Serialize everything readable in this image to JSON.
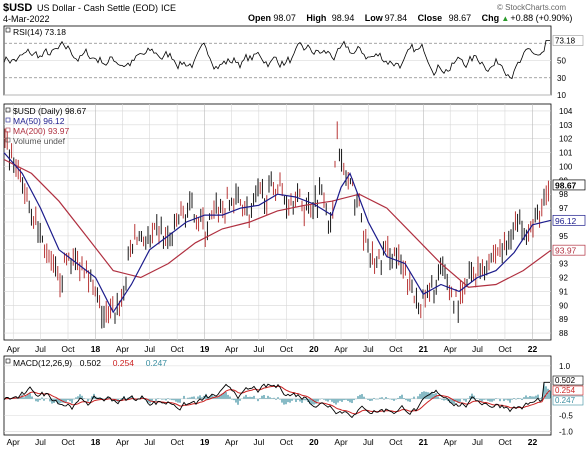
{
  "header": {
    "symbol": "$USD",
    "name": "US Dollar - Cash Settle (EOD)",
    "exchange": "ICE",
    "date": "4-Mar-2022",
    "watermark": "© StockCharts.com",
    "ohlc": [
      {
        "label": "Open",
        "value": "98.07"
      },
      {
        "label": "High",
        "value": "98.94"
      },
      {
        "label": "Low",
        "value": "97.84"
      },
      {
        "label": "Close",
        "value": "98.67"
      },
      {
        "label": "Chg",
        "value": "+0.88 (+0.90%)"
      }
    ],
    "chg_arrow": "▲"
  },
  "colors": {
    "price": "#000000",
    "ma50": "#1c1c8c",
    "ma200": "#b03040",
    "macd": "#000000",
    "signal": "#cc2222",
    "histogram": "#3a8ea0",
    "grid": "#d8d8d8",
    "rsi_line": "#000000",
    "rsi_fill_high": "#cc3333",
    "rsi_fill_low": "#3355cc"
  },
  "chart_data": [
    {
      "type": "line",
      "panel": "rsi",
      "title": "RSI(14) 73.18",
      "legend": "RSI(14) 73.18",
      "current_value": 73.18,
      "current_label": "73.18",
      "ylim": [
        10,
        90
      ],
      "yticks": [
        70,
        50,
        30,
        10
      ],
      "reference_lines": [
        70,
        30
      ],
      "grid": true
    },
    {
      "type": "line",
      "panel": "price",
      "legend": [
        {
          "name": "$USD (Daily) 98.67",
          "color": "#000000"
        },
        {
          "name": "MA(50) 96.12",
          "color": "#1c1c8c"
        },
        {
          "name": "MA(200) 93.97",
          "color": "#b03040"
        },
        {
          "name": "Volume undef",
          "color": "#555555"
        }
      ],
      "ylim": [
        87.5,
        104.5
      ],
      "yticks": [
        88,
        89,
        90,
        91,
        92,
        93,
        94,
        95,
        96,
        97,
        98,
        99,
        100,
        101,
        102,
        103,
        104
      ],
      "right_labels": [
        {
          "value": 98.67,
          "label": "98.67"
        },
        {
          "value": 96.12,
          "label": "96.12"
        },
        {
          "value": 93.97,
          "label": "93.97"
        }
      ],
      "series": [
        {
          "name": "$USD (Daily)",
          "x": [
            "2017-03-01",
            "2017-04-01",
            "2017-05-01",
            "2017-06-01",
            "2017-07-01",
            "2017-08-01",
            "2017-09-01",
            "2017-10-01",
            "2017-11-01",
            "2017-12-01",
            "2018-01-01",
            "2018-02-01",
            "2018-03-01",
            "2018-04-01",
            "2018-05-01",
            "2018-06-01",
            "2018-07-01",
            "2018-08-01",
            "2018-09-01",
            "2018-10-01",
            "2018-11-01",
            "2018-12-01",
            "2019-01-01",
            "2019-02-01",
            "2019-03-01",
            "2019-04-01",
            "2019-05-01",
            "2019-06-01",
            "2019-07-01",
            "2019-08-01",
            "2019-09-01",
            "2019-10-01",
            "2019-11-01",
            "2019-12-01",
            "2020-01-01",
            "2020-02-01",
            "2020-03-01",
            "2020-03-15",
            "2020-03-20",
            "2020-04-01",
            "2020-05-01",
            "2020-06-01",
            "2020-07-01",
            "2020-08-01",
            "2020-09-01",
            "2020-10-01",
            "2020-11-01",
            "2020-12-01",
            "2021-01-01",
            "2021-02-01",
            "2021-03-01",
            "2021-04-01",
            "2021-05-01",
            "2021-06-01",
            "2021-07-01",
            "2021-08-01",
            "2021-09-01",
            "2021-10-01",
            "2021-11-01",
            "2021-12-01",
            "2022-01-01",
            "2022-02-01",
            "2022-03-04"
          ],
          "values": [
            101.5,
            100.0,
            98.8,
            97.0,
            95.0,
            93.0,
            91.8,
            93.5,
            93.0,
            93.0,
            90.5,
            89.0,
            89.5,
            90.5,
            94.5,
            95.0,
            94.5,
            95.5,
            94.5,
            96.0,
            96.8,
            96.8,
            95.5,
            96.5,
            97.0,
            97.5,
            97.5,
            96.5,
            98.0,
            98.0,
            98.7,
            97.5,
            98.0,
            97.0,
            97.5,
            98.5,
            95.0,
            102.5,
            103.5,
            100.0,
            98.5,
            97.0,
            93.5,
            93.0,
            94.0,
            93.5,
            92.0,
            90.5,
            90.2,
            91.0,
            92.5,
            91.0,
            90.0,
            92.0,
            92.5,
            93.0,
            94.0,
            94.0,
            96.0,
            96.0,
            95.5,
            97.0,
            98.67
          ]
        },
        {
          "name": "MA(50)",
          "x": [
            "2017-03-01",
            "2017-05-01",
            "2017-07-01",
            "2017-09-01",
            "2017-11-01",
            "2018-01-01",
            "2018-03-01",
            "2018-05-01",
            "2018-07-01",
            "2018-09-01",
            "2018-11-01",
            "2019-01-01",
            "2019-03-01",
            "2019-05-01",
            "2019-07-01",
            "2019-09-01",
            "2019-11-01",
            "2020-01-01",
            "2020-03-01",
            "2020-04-01",
            "2020-05-01",
            "2020-07-01",
            "2020-09-01",
            "2020-11-01",
            "2021-01-01",
            "2021-03-01",
            "2021-05-01",
            "2021-07-01",
            "2021-09-01",
            "2021-11-01",
            "2022-01-01",
            "2022-03-04"
          ],
          "values": [
            101.0,
            99.5,
            97.0,
            94.0,
            93.0,
            92.0,
            89.5,
            91.5,
            94.0,
            95.0,
            96.0,
            96.5,
            96.5,
            97.0,
            97.2,
            98.0,
            97.8,
            97.3,
            96.5,
            98.5,
            99.5,
            96.0,
            93.5,
            93.0,
            90.8,
            91.5,
            91.0,
            92.0,
            92.5,
            93.8,
            95.8,
            96.12
          ]
        },
        {
          "name": "MA(200)",
          "x": [
            "2017-03-01",
            "2017-06-01",
            "2017-09-01",
            "2017-12-01",
            "2018-03-01",
            "2018-06-01",
            "2018-09-01",
            "2018-12-01",
            "2019-03-01",
            "2019-06-01",
            "2019-09-01",
            "2019-12-01",
            "2020-03-01",
            "2020-06-01",
            "2020-09-01",
            "2020-12-01",
            "2021-03-01",
            "2021-06-01",
            "2021-09-01",
            "2021-12-01",
            "2022-03-04"
          ],
          "values": [
            100.5,
            99.5,
            97.5,
            95.0,
            92.5,
            92.0,
            93.0,
            94.5,
            95.5,
            96.0,
            96.8,
            97.2,
            97.5,
            98.0,
            97.0,
            95.0,
            93.0,
            91.3,
            91.5,
            92.5,
            93.97
          ]
        }
      ]
    },
    {
      "type": "line",
      "panel": "macd",
      "legend": [
        {
          "name": "MACD(12,26,9)",
          "value": "0.502",
          "color": "#000000"
        },
        {
          "name": "",
          "value": "0.254",
          "color": "#cc2222"
        },
        {
          "name": "",
          "value": "0.247",
          "color": "#3a8ea0"
        }
      ],
      "ylim": [
        -1.1,
        1.3
      ],
      "yticks": [
        1.0,
        0.5,
        0.0,
        -0.5,
        -1.0
      ],
      "ytick_labels": [
        "1.0",
        "0.5",
        "0.0",
        "-0.5",
        "-1.0"
      ],
      "right_labels": [
        {
          "value": 0.502,
          "label": "0.502"
        },
        {
          "value": 0.254,
          "label": "0.254"
        },
        {
          "value": 0.247,
          "label": "0.247"
        }
      ]
    }
  ],
  "x_axis": {
    "ticks": [
      {
        "date": "2017-04-01",
        "label": "Apr",
        "bold": false
      },
      {
        "date": "2017-07-01",
        "label": "Jul",
        "bold": false
      },
      {
        "date": "2017-10-01",
        "label": "Oct",
        "bold": false
      },
      {
        "date": "2018-01-01",
        "label": "18",
        "bold": true
      },
      {
        "date": "2018-04-01",
        "label": "Apr",
        "bold": false
      },
      {
        "date": "2018-07-01",
        "label": "Jul",
        "bold": false
      },
      {
        "date": "2018-10-01",
        "label": "Oct",
        "bold": false
      },
      {
        "date": "2019-01-01",
        "label": "19",
        "bold": true
      },
      {
        "date": "2019-04-01",
        "label": "Apr",
        "bold": false
      },
      {
        "date": "2019-07-01",
        "label": "Jul",
        "bold": false
      },
      {
        "date": "2019-10-01",
        "label": "Oct",
        "bold": false
      },
      {
        "date": "2020-01-01",
        "label": "20",
        "bold": true
      },
      {
        "date": "2020-04-01",
        "label": "Apr",
        "bold": false
      },
      {
        "date": "2020-07-01",
        "label": "Jul",
        "bold": false
      },
      {
        "date": "2020-10-01",
        "label": "Oct",
        "bold": false
      },
      {
        "date": "2021-01-01",
        "label": "21",
        "bold": true
      },
      {
        "date": "2021-04-01",
        "label": "Apr",
        "bold": false
      },
      {
        "date": "2021-07-01",
        "label": "Jul",
        "bold": false
      },
      {
        "date": "2021-10-01",
        "label": "Oct",
        "bold": false
      },
      {
        "date": "2022-01-01",
        "label": "22",
        "bold": true
      }
    ],
    "range": [
      "2017-03-01",
      "2022-03-04"
    ]
  }
}
